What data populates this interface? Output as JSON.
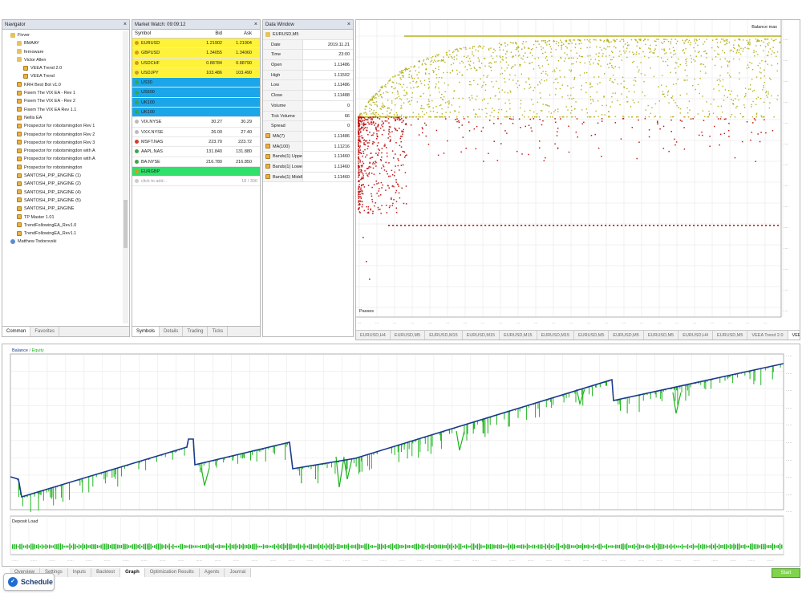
{
  "navigator": {
    "title": "Navigator",
    "items": [
      {
        "label": "Fivver",
        "icon": "folder-icon",
        "indent": 1
      },
      {
        "label": "BMAAY",
        "icon": "folder-icon",
        "indent": 2
      },
      {
        "label": "fernoware",
        "icon": "folder-icon",
        "indent": 2
      },
      {
        "label": "Victor Allen",
        "icon": "folder-icon",
        "indent": 2
      },
      {
        "label": "VEEA Trend 2.0",
        "icon": "ea-icon",
        "indent": 3
      },
      {
        "label": "VEEA Trend",
        "icon": "ea-icon",
        "indent": 3
      },
      {
        "label": "KRH Best Bot v1.0",
        "icon": "ea-icon",
        "indent": 2
      },
      {
        "label": "Fixem The VIX EA - Rev 1",
        "icon": "ea-icon",
        "indent": 2
      },
      {
        "label": "Fixem The VIX EA - Rev 2",
        "icon": "ea-icon",
        "indent": 2
      },
      {
        "label": "Fixem The VIX EA Rev 1.1",
        "icon": "ea-icon",
        "indent": 2
      },
      {
        "label": "Nellis EA",
        "icon": "ea-icon",
        "indent": 2
      },
      {
        "label": "Prospector for robotsmingdon Rev 1",
        "icon": "ea-icon",
        "indent": 2
      },
      {
        "label": "Prospector for robotsmingdon Rev 2",
        "icon": "ea-icon",
        "indent": 2
      },
      {
        "label": "Prospector for robotsmingdon Rev 3",
        "icon": "ea-icon",
        "indent": 2
      },
      {
        "label": "Prospector for robotsmingdon with A",
        "icon": "ea-icon",
        "indent": 2
      },
      {
        "label": "Prospector for robotsmingdon with A",
        "icon": "ea-icon",
        "indent": 2
      },
      {
        "label": "Prospector for robotsmingdon",
        "icon": "ea-icon",
        "indent": 2
      },
      {
        "label": "SANTOSH_PIP_ENGINE (1)",
        "icon": "ea-icon",
        "indent": 2
      },
      {
        "label": "SANTOSH_PIP_ENGINE (2)",
        "icon": "ea-icon",
        "indent": 2
      },
      {
        "label": "SANTOSH_PIP_ENGINE (4)",
        "icon": "ea-icon",
        "indent": 2
      },
      {
        "label": "SANTOSH_PIP_ENGINE (5)",
        "icon": "ea-icon",
        "indent": 2
      },
      {
        "label": "SANTOSH_PIP_ENGINE",
        "icon": "ea-icon",
        "indent": 2
      },
      {
        "label": "TP Master 1.01",
        "icon": "ea-icon",
        "indent": 2
      },
      {
        "label": "TrendFollowingEA_Rev1.0",
        "icon": "ea-icon",
        "indent": 2
      },
      {
        "label": "TrendFollowingEA_Rev1.1",
        "icon": "ea-icon",
        "indent": 2
      },
      {
        "label": "Matthew Todorovski",
        "icon": "person-icon",
        "indent": 1
      }
    ],
    "tabs": [
      "Common",
      "Favorites"
    ]
  },
  "market_watch": {
    "title": "Market Watch: 09:09:12",
    "columns": [
      "Symbol",
      "Bid",
      "Ask"
    ],
    "rows": [
      {
        "symbol": "EURUSD",
        "bid": "1.21902",
        "ask": "1.21904",
        "bg": "#fff23a",
        "dot": "#d69a1a"
      },
      {
        "symbol": "GBPUSD",
        "bid": "1.34055",
        "ask": "1.34060",
        "bg": "#fff23a",
        "dot": "#d69a1a"
      },
      {
        "symbol": "USDCHF",
        "bid": "0.88784",
        "ask": "0.88790",
        "bg": "#fff23a",
        "dot": "#d69a1a"
      },
      {
        "symbol": "USDJPY",
        "bid": "103.486",
        "ask": "103.490",
        "bg": "#fff23a",
        "dot": "#d69a1a"
      },
      {
        "symbol": "US30",
        "bid": "",
        "ask": "",
        "bg": "#1aa6e8",
        "dot": "#3fa34d"
      },
      {
        "symbol": "US500",
        "bid": "",
        "ask": "",
        "bg": "#1aa6e8",
        "dot": "#3fa34d"
      },
      {
        "symbol": "UK100",
        "bid": "",
        "ask": "",
        "bg": "#1aa6e8",
        "dot": "#3fa34d"
      },
      {
        "symbol": "UK100",
        "bid": "",
        "ask": "",
        "bg": "#1aa6e8",
        "dot": "#3fa34d"
      },
      {
        "symbol": "VIX.NYSE",
        "bid": "30.27",
        "ask": "30.29",
        "bg": "#ffffff",
        "dot": "#bbbbbb"
      },
      {
        "symbol": "VXX.NYSE",
        "bid": "26.00",
        "ask": "27.40",
        "bg": "#ffffff",
        "dot": "#bbbbbb"
      },
      {
        "symbol": "MSFT.NAS",
        "bid": "223.70",
        "ask": "223.72",
        "bg": "#ffffff",
        "dot": "#d93a2b"
      },
      {
        "symbol": "AAPL.NAS",
        "bid": "131.840",
        "ask": "131.880",
        "bg": "#ffffff",
        "dot": "#3fa34d"
      },
      {
        "symbol": "BA.NYSE",
        "bid": "216.780",
        "ask": "216.850",
        "bg": "#ffffff",
        "dot": "#3fa34d"
      },
      {
        "symbol": "EURGBP",
        "bid": "",
        "ask": "",
        "bg": "#2fe06a",
        "dot": "#d69a1a"
      }
    ],
    "add_label": "click to add...",
    "count": "18 / 300",
    "tabs": [
      "Symbols",
      "Details",
      "Trading",
      "Ticks"
    ]
  },
  "data_window": {
    "title": "Data Window",
    "symbol": "EURUSD,M5",
    "rows": [
      {
        "k": "Date",
        "v": "2019.11.21"
      },
      {
        "k": "Time",
        "v": "23:00"
      },
      {
        "k": "Open",
        "v": "1.11486"
      },
      {
        "k": "High",
        "v": "1.11502"
      },
      {
        "k": "Low",
        "v": "1.11486"
      },
      {
        "k": "Close",
        "v": "1.11488"
      },
      {
        "k": "Volume",
        "v": "0"
      },
      {
        "k": "Tick Volume",
        "v": "66"
      },
      {
        "k": "Spread",
        "v": "0"
      },
      {
        "k": "MA(7)",
        "v": "1.11486"
      },
      {
        "k": "MA(100)",
        "v": "1.11216"
      },
      {
        "k": "Bands(1) Upper",
        "v": "1.11460"
      },
      {
        "k": "Bands(1) Lower",
        "v": "1.11460"
      },
      {
        "k": "Bands(1) Middle",
        "v": "1.11460"
      }
    ]
  },
  "optimization_chart": {
    "label_top": "Balance max",
    "label_bottom": "Passes",
    "tabs": [
      "EURUSD,H4",
      "EURUSD,M5",
      "EURUSD,M15",
      "EURUSD,M15",
      "EURUSD,M15",
      "EURUSD,M15",
      "EURUSD,M5",
      "EURUSD,M5",
      "EURUSD,M5",
      "EURUSD,H4",
      "EURUSD,M5",
      "VEEA Trend 2.0",
      "VEEA"
    ]
  },
  "balance_chart": {
    "legend_balance": "Balance",
    "legend_equity": "Equity",
    "deposit_label": "Deposit Load",
    "balance_color": "#1b3a8f",
    "equity_color": "#1db41d"
  },
  "bottom_tabs": [
    "Overview",
    "Settings",
    "Inputs",
    "Backtest",
    "Graph",
    "Optimization Results",
    "Agents",
    "Journal"
  ],
  "active_bottom_tab": "Graph",
  "start_button": "Start",
  "schedule_label": "Schedule",
  "colors": {
    "scatter_yellow": "#b5b21d",
    "scatter_red": "#c01a1a",
    "panel_title": "#dfe4ec"
  }
}
